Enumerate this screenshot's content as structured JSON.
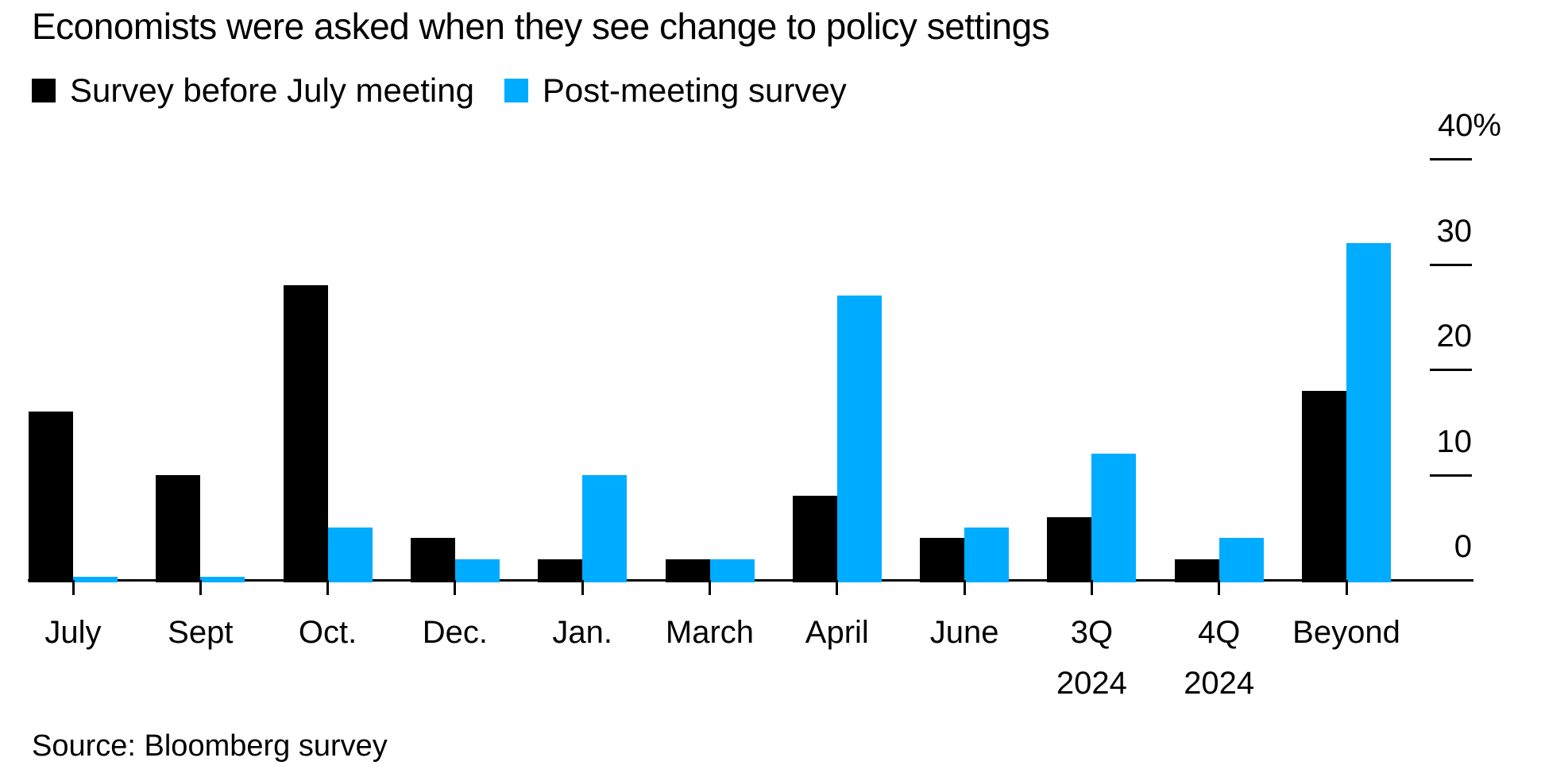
{
  "chart_data": {
    "type": "bar",
    "title": "Economists were asked when they see change to policy settings",
    "source": "Source: Bloomberg survey",
    "categories": [
      "July",
      "Sept",
      "Oct.",
      "Dec.",
      "Jan.",
      "March",
      "April",
      "June",
      "3Q 2024",
      "4Q 2024",
      "Beyond"
    ],
    "category_label_lines": [
      [
        "July"
      ],
      [
        "Sept"
      ],
      [
        "Oct."
      ],
      [
        "Dec."
      ],
      [
        "Jan."
      ],
      [
        "March"
      ],
      [
        "April"
      ],
      [
        "June"
      ],
      [
        "3Q",
        "2024"
      ],
      [
        "4Q",
        "2024"
      ],
      [
        "Beyond"
      ]
    ],
    "series": [
      {
        "name": "Survey before July meeting",
        "color": "#000000",
        "values": [
          16,
          10,
          28,
          4,
          2,
          2,
          8,
          4,
          6,
          2,
          18
        ]
      },
      {
        "name": "Post-meeting survey",
        "color": "#00ACFF",
        "values": [
          0,
          0,
          5,
          2,
          10,
          2,
          27,
          5,
          12,
          4,
          32
        ]
      }
    ],
    "unit": "%",
    "ylim": [
      0,
      40
    ],
    "yticks": [
      40,
      30,
      20,
      10,
      0
    ],
    "ytick_labels": [
      "40%",
      "30",
      "20",
      "10",
      "0"
    ],
    "grid": false,
    "axis_side": "right",
    "legend_position": "top-left",
    "background_color": "#FFFFFF",
    "text_color": "#000000"
  }
}
